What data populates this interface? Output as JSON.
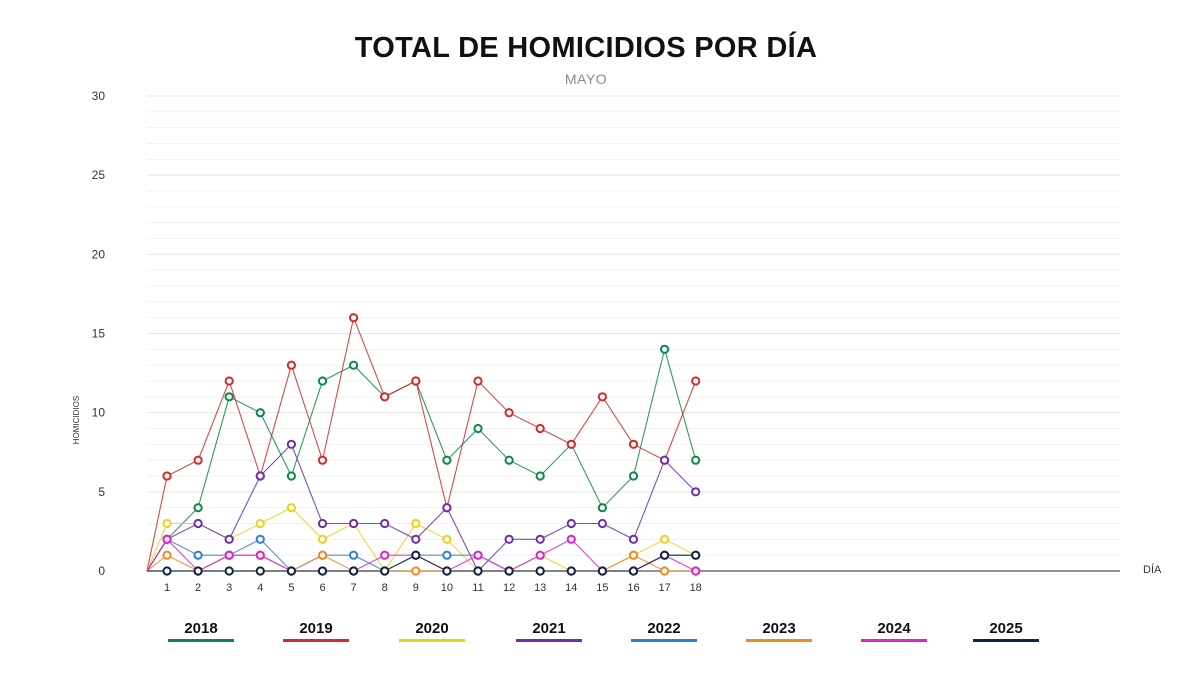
{
  "chart_data": {
    "type": "line",
    "title": "TOTAL DE HOMICIDIOS POR DÍA",
    "subtitle": "MAYO",
    "xlabel": "DÍA",
    "ylabel": "HOMICIDIOS",
    "x": [
      1,
      2,
      3,
      4,
      5,
      6,
      7,
      8,
      9,
      10,
      11,
      12,
      13,
      14,
      15,
      16,
      17,
      18
    ],
    "y_ticks": [
      0,
      5,
      10,
      15,
      20,
      25,
      30
    ],
    "ylim": [
      0,
      30
    ],
    "grid": true,
    "legend_position": "bottom",
    "series": [
      {
        "name": "2018",
        "color": "#0a8a4a",
        "values": [
          2,
          4,
          11,
          10,
          6,
          12,
          13,
          11,
          12,
          7,
          9,
          7,
          6,
          8,
          4,
          6,
          14,
          7
        ]
      },
      {
        "name": "2019",
        "color": "#d42a2a",
        "values": [
          6,
          7,
          12,
          6,
          13,
          7,
          16,
          11,
          12,
          4,
          12,
          10,
          9,
          8,
          11,
          8,
          7,
          12
        ]
      },
      {
        "name": "2020",
        "color": "#e8d21a",
        "values": [
          3,
          3,
          2,
          3,
          4,
          2,
          3,
          0,
          3,
          2,
          0,
          0,
          1,
          0,
          0,
          1,
          2,
          1
        ]
      },
      {
        "name": "2021",
        "color": "#6a2fb0",
        "values": [
          2,
          3,
          2,
          6,
          8,
          3,
          3,
          3,
          2,
          4,
          0,
          2,
          2,
          3,
          3,
          2,
          7,
          5
        ]
      },
      {
        "name": "2022",
        "color": "#2f7fd0",
        "values": [
          2,
          1,
          1,
          2,
          0,
          1,
          1,
          0,
          1,
          1,
          1,
          0,
          0,
          0,
          0,
          0,
          1,
          1
        ]
      },
      {
        "name": "2023",
        "color": "#f08a1c",
        "values": [
          1,
          0,
          1,
          1,
          0,
          1,
          0,
          0,
          0,
          0,
          0,
          0,
          0,
          0,
          0,
          1,
          0,
          0
        ]
      },
      {
        "name": "2024",
        "color": "#e020c8",
        "values": [
          2,
          0,
          1,
          1,
          0,
          0,
          0,
          1,
          1,
          0,
          1,
          0,
          1,
          2,
          0,
          0,
          1,
          0
        ]
      },
      {
        "name": "2025",
        "color": "#10243e",
        "values": [
          0,
          0,
          0,
          0,
          0,
          0,
          0,
          0,
          1,
          0,
          0,
          0,
          0,
          0,
          0,
          0,
          1,
          1
        ]
      }
    ]
  }
}
